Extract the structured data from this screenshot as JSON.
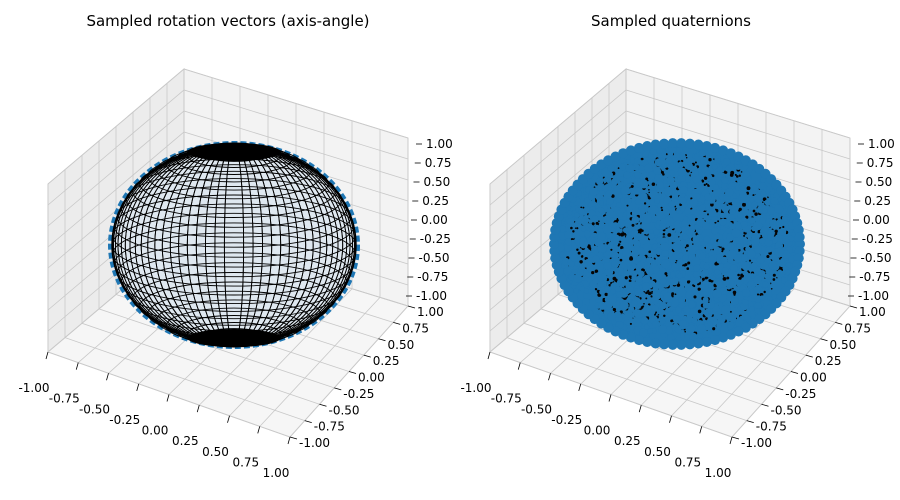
{
  "chart_data": [
    {
      "type": "scatter",
      "projection": "3d",
      "title": "Sampled rotation vectors (axis-angle)",
      "xlim": [
        -1.0,
        1.0
      ],
      "ylim": [
        -1.0,
        1.0
      ],
      "zlim": [
        -1.0,
        1.0
      ],
      "x_ticks": [
        "-1.00",
        "-0.75",
        "-0.50",
        "-0.25",
        "0.00",
        "0.25",
        "0.50",
        "0.75",
        "1.00"
      ],
      "y_ticks": [
        "-1.00",
        "-0.75",
        "-0.50",
        "-0.25",
        "0.00",
        "0.25",
        "0.50",
        "0.75",
        "1.00"
      ],
      "z_ticks": [
        "-1.00",
        "-0.75",
        "-0.50",
        "-0.25",
        "0.00",
        "0.25",
        "0.50",
        "0.75",
        "1.00"
      ],
      "grid": true,
      "surface": "unit sphere wireframe",
      "point_color": "#1f77b4",
      "edge_color": "#000000"
    },
    {
      "type": "scatter",
      "projection": "3d",
      "title": "Sampled quaternions",
      "xlim": [
        -1.0,
        1.0
      ],
      "ylim": [
        -1.0,
        1.0
      ],
      "zlim": [
        -1.0,
        1.0
      ],
      "x_ticks": [
        "-1.00",
        "-0.75",
        "-0.50",
        "-0.25",
        "0.00",
        "0.25",
        "0.50",
        "0.75",
        "1.00"
      ],
      "y_ticks": [
        "-1.00",
        "-0.75",
        "-0.50",
        "-0.25",
        "0.00",
        "0.25",
        "0.50",
        "0.75",
        "1.00"
      ],
      "z_ticks": [
        "-1.00",
        "-0.75",
        "-0.50",
        "-0.25",
        "0.00",
        "0.25",
        "0.50",
        "0.75",
        "1.00"
      ],
      "grid": true,
      "surface": "unit sphere dense scatter",
      "point_color": "#1f77b4",
      "edge_color": "#000000"
    }
  ]
}
